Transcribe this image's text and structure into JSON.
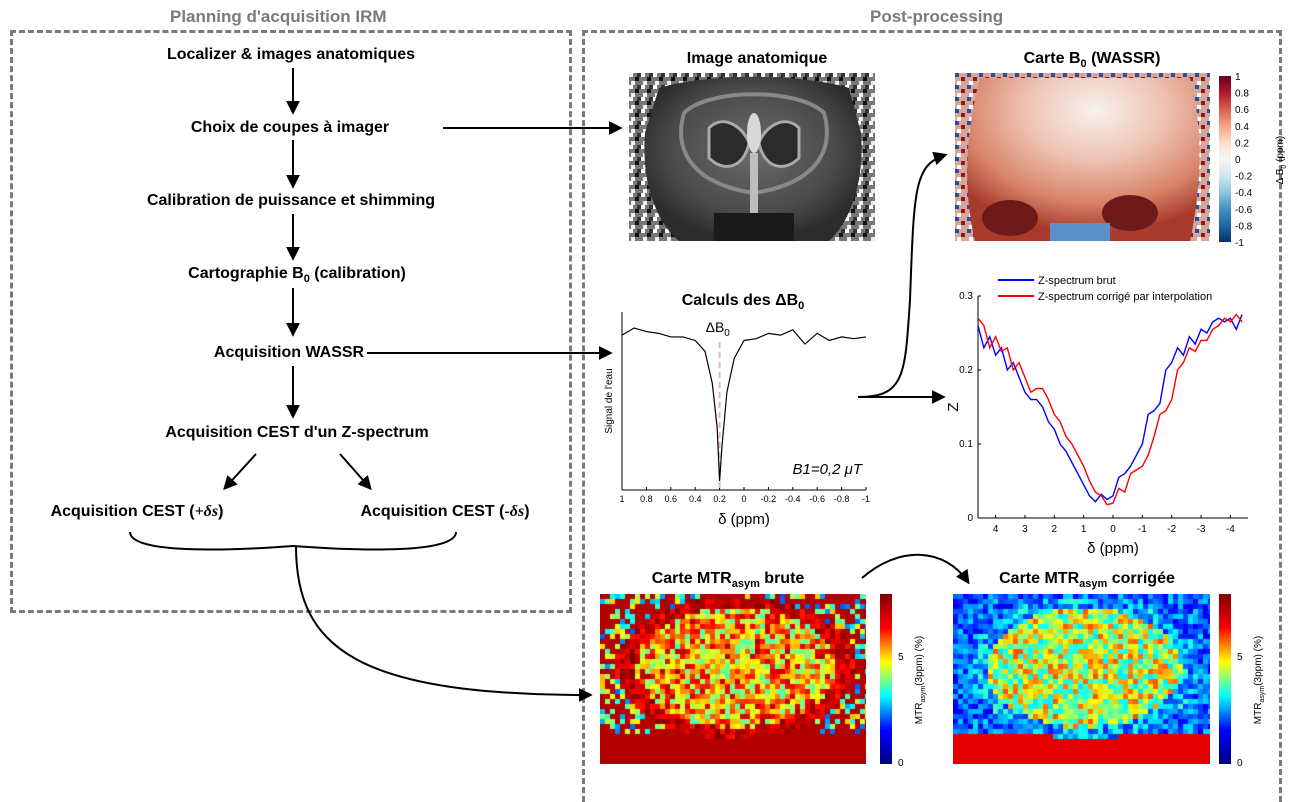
{
  "sections": {
    "planning_title": "Planning d'acquisition IRM",
    "post_title": "Post-processing"
  },
  "steps": {
    "s1": "Localizer & images anatomiques",
    "s2": "Choix de coupes à imager",
    "s3": "Calibration de puissance et shimming",
    "s4": "Cartographie B",
    "s4_sub": "0",
    "s4_tail": " (calibration)",
    "s5": "Acquisition WASSR",
    "s6": "Acquisition CEST d'un Z-spectrum",
    "s7a": "Acquisition CEST (",
    "s7a_sym": "+δs",
    "s7b": "Acquisition CEST (",
    "s7b_sym": "-δs",
    "close": ")"
  },
  "panels": {
    "anat_title": "Image anatomique",
    "b0_title_pre": "Carte B",
    "b0_title_sub": "0",
    "b0_title_post": " (WASSR)",
    "calc_title_pre": "Calculs des ΔB",
    "calc_title_sub": "0",
    "mtr_raw_pre": "Carte MTR",
    "mtr_raw_sub": "asym",
    "mtr_raw_post": " brute",
    "mtr_corr_pre": "Carte MTR",
    "mtr_corr_sub": "asym",
    "mtr_corr_post": " corrigée"
  },
  "colorbars": {
    "b0_label": "Δ B",
    "b0_label_sub": "0",
    "b0_label_unit": " (ppm)",
    "b0_ticks": [
      "1",
      "0.8",
      "0.6",
      "0.4",
      "0.2",
      "0",
      "-0.2",
      "-0.4",
      "-0.6",
      "-0.8",
      "-1"
    ],
    "mtr_label": "MTR",
    "mtr_label_sub": "asym",
    "mtr_label_unit": "(3ppm) (%)",
    "mtr_ticks": [
      "5",
      "0"
    ]
  },
  "colors": {
    "box_border": "#7a7a7a",
    "series_raw": "#0000ff",
    "series_corr": "#ff0000",
    "dashed_marker": "#e3b5bd"
  },
  "chart_data": [
    {
      "type": "line",
      "title": "Calculs des ΔB0",
      "xlabel": "δ (ppm)",
      "ylabel": "Signal de l'eau",
      "annotation": "ΔB0",
      "annotation_b1": "B1=0,2 μT",
      "xlim": [
        1,
        -1
      ],
      "xticks": [
        "1",
        "0.8",
        "0.6",
        "0.4",
        "0.2",
        "0",
        "-0.2",
        "-0.4",
        "-0.6",
        "-0.8",
        "-1"
      ],
      "x": [
        1.0,
        0.9,
        0.8,
        0.7,
        0.6,
        0.5,
        0.4,
        0.32,
        0.26,
        0.22,
        0.2,
        0.18,
        0.14,
        0.08,
        0.0,
        -0.1,
        -0.2,
        -0.3,
        -0.4,
        -0.5,
        -0.6,
        -0.7,
        -0.8,
        -0.9,
        -1.0
      ],
      "y": [
        0.87,
        0.91,
        0.89,
        0.88,
        0.86,
        0.86,
        0.84,
        0.78,
        0.6,
        0.35,
        0.05,
        0.25,
        0.55,
        0.74,
        0.84,
        0.85,
        0.88,
        0.87,
        0.9,
        0.82,
        0.88,
        0.84,
        0.86,
        0.85,
        0.86
      ],
      "ylim": [
        0,
        1
      ],
      "marker_x": 0.2
    },
    {
      "type": "line",
      "xlabel": "δ (ppm)",
      "ylabel": "Z",
      "xlim": [
        4.6,
        -4.6
      ],
      "ylim": [
        0,
        0.3
      ],
      "xticks": [
        "4",
        "3",
        "2",
        "1",
        "0",
        "-1",
        "-2",
        "-3",
        "-4"
      ],
      "yticks": [
        "0",
        "0.1",
        "0.2",
        "0.3"
      ],
      "legend_position": "top",
      "series": [
        {
          "name": "Z-spectrum brut",
          "x": [
            4.6,
            4.4,
            4.2,
            4.0,
            3.8,
            3.6,
            3.4,
            3.2,
            3.0,
            2.8,
            2.6,
            2.4,
            2.2,
            2.0,
            1.8,
            1.6,
            1.4,
            1.2,
            1.0,
            0.8,
            0.6,
            0.4,
            0.2,
            0.0,
            -0.2,
            -0.4,
            -0.6,
            -0.8,
            -1.0,
            -1.2,
            -1.4,
            -1.6,
            -1.8,
            -2.0,
            -2.2,
            -2.4,
            -2.6,
            -2.8,
            -3.0,
            -3.2,
            -3.4,
            -3.6,
            -3.8,
            -4.0,
            -4.2,
            -4.4
          ],
          "values": [
            0.26,
            0.23,
            0.245,
            0.22,
            0.23,
            0.2,
            0.21,
            0.19,
            0.17,
            0.16,
            0.16,
            0.15,
            0.13,
            0.12,
            0.1,
            0.09,
            0.075,
            0.06,
            0.045,
            0.03,
            0.022,
            0.032,
            0.025,
            0.03,
            0.055,
            0.06,
            0.07,
            0.085,
            0.1,
            0.14,
            0.145,
            0.155,
            0.2,
            0.21,
            0.23,
            0.22,
            0.245,
            0.235,
            0.255,
            0.25,
            0.265,
            0.27,
            0.265,
            0.27,
            0.255,
            0.275
          ]
        },
        {
          "name": "Z-spectrum corrigé par interpolation",
          "x": [
            4.6,
            4.4,
            4.2,
            4.0,
            3.8,
            3.6,
            3.4,
            3.2,
            3.0,
            2.8,
            2.6,
            2.4,
            2.2,
            2.0,
            1.8,
            1.6,
            1.4,
            1.2,
            1.0,
            0.8,
            0.6,
            0.4,
            0.2,
            0.0,
            -0.2,
            -0.4,
            -0.6,
            -0.8,
            -1.0,
            -1.2,
            -1.4,
            -1.6,
            -1.8,
            -2.0,
            -2.2,
            -2.4,
            -2.6,
            -2.8,
            -3.0,
            -3.2,
            -3.4,
            -3.6,
            -3.8,
            -4.0,
            -4.2,
            -4.4
          ],
          "values": [
            0.27,
            0.26,
            0.23,
            0.245,
            0.225,
            0.23,
            0.2,
            0.21,
            0.19,
            0.17,
            0.175,
            0.175,
            0.16,
            0.14,
            0.13,
            0.11,
            0.1,
            0.085,
            0.07,
            0.05,
            0.035,
            0.03,
            0.018,
            0.02,
            0.04,
            0.035,
            0.06,
            0.065,
            0.07,
            0.085,
            0.11,
            0.14,
            0.145,
            0.16,
            0.2,
            0.21,
            0.23,
            0.225,
            0.24,
            0.24,
            0.255,
            0.26,
            0.27,
            0.265,
            0.275,
            0.265
          ]
        }
      ]
    }
  ]
}
